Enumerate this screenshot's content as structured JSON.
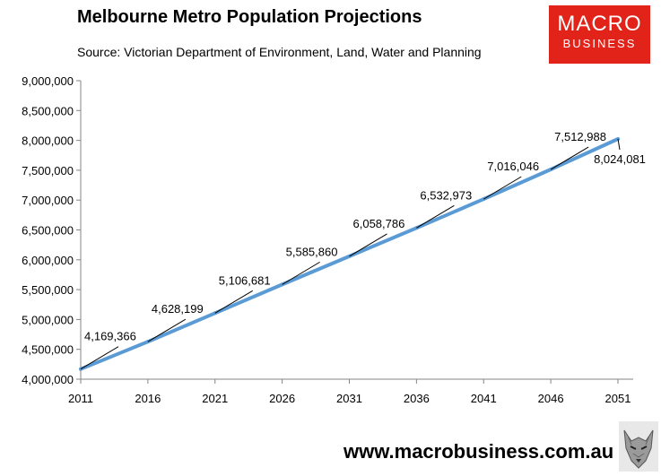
{
  "header": {
    "title": "Melbourne Metro Population Projections",
    "source": "Source: Victorian Department of Environment, Land, Water and Planning"
  },
  "logo": {
    "line1": "MACRO",
    "line2": "BUSINESS",
    "color": "#e2231a"
  },
  "footer": {
    "website": "www.macrobusiness.com.au",
    "mascot_icon": "wolf-icon"
  },
  "chart_data": {
    "type": "line",
    "categories": [
      "2011",
      "2016",
      "2021",
      "2026",
      "2031",
      "2036",
      "2041",
      "2046",
      "2051"
    ],
    "series": [
      {
        "values": [
          4169366,
          4628199,
          5106681,
          5585860,
          6058786,
          6532973,
          7016046,
          7512988,
          8024081
        ],
        "data_labels": [
          "4,169,366",
          "4,628,199",
          "5,106,681",
          "5,585,860",
          "6,058,786",
          "6,532,973",
          "7,016,046",
          "7,512,988",
          "8,024,081"
        ],
        "color": "#5b9bd5"
      }
    ],
    "ylim": [
      4000000,
      9000000
    ],
    "yticks": [
      4000000,
      4500000,
      5000000,
      5500000,
      6000000,
      6500000,
      7000000,
      7500000,
      8000000,
      8500000,
      9000000
    ],
    "ytick_labels": [
      "4,000,000",
      "4,500,000",
      "5,000,000",
      "5,500,000",
      "6,000,000",
      "6,500,000",
      "7,000,000",
      "7,500,000",
      "8,000,000",
      "8,500,000",
      "9,000,000"
    ],
    "grid": false,
    "legend": "none",
    "xlabel": "",
    "ylabel": ""
  }
}
